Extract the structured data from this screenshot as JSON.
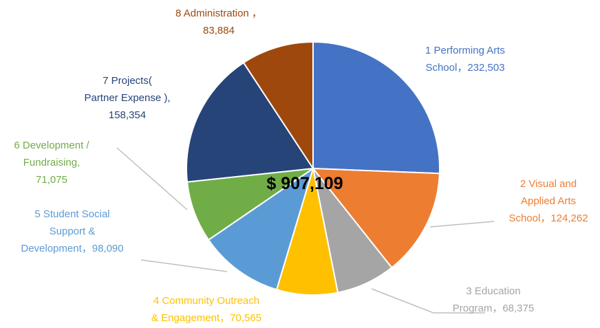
{
  "chart_data": {
    "type": "pie",
    "center_label": "$ 907,109",
    "start_angle_deg": 0,
    "direction": "clockwise",
    "slices": [
      {
        "label": "1 Performing Arts School",
        "label_lines": [
          "1 Performing Arts",
          "School，232,503"
        ],
        "value": 232503,
        "color": "#4472C4"
      },
      {
        "label": "2 Visual and Applied Arts School",
        "label_lines": [
          "2 Visual and",
          "Applied Arts",
          "School，124,262"
        ],
        "value": 124262,
        "color": "#ED7D31"
      },
      {
        "label": "3 Education Program",
        "label_lines": [
          "3 Education",
          "Program，68,375"
        ],
        "value": 68375,
        "color": "#A5A5A5"
      },
      {
        "label": "4 Community Outreach & Engagement",
        "label_lines": [
          "4 Community Outreach",
          "& Engagement，70,565"
        ],
        "value": 70565,
        "color": "#FFC000"
      },
      {
        "label": "5 Student Social Support & Development",
        "label_lines": [
          "5 Student Social",
          "Support &",
          "Development，98,090"
        ],
        "value": 98090,
        "color": "#5B9BD5"
      },
      {
        "label": "6 Development / Fundraising",
        "label_lines": [
          "6 Development /",
          "Fundraising,",
          "71,075"
        ],
        "value": 71075,
        "color": "#70AD47"
      },
      {
        "label": "7 Projects( Partner Expense )",
        "label_lines": [
          "7 Projects(",
          "Partner Expense ),",
          "158,354"
        ],
        "value": 158354,
        "color": "#264478"
      },
      {
        "label": "8 Administration",
        "label_lines": [
          "8 Administration ，",
          "83,884"
        ],
        "value": 83884,
        "color": "#9E480E"
      }
    ]
  }
}
